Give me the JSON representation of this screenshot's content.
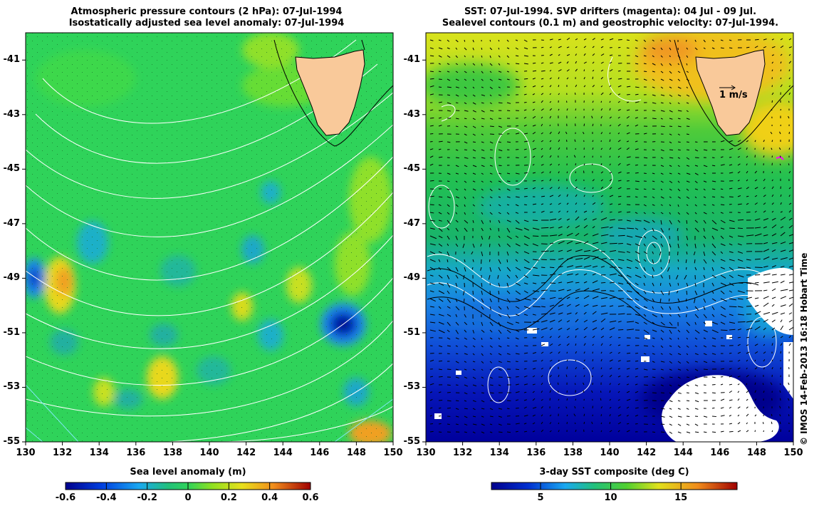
{
  "left_panel": {
    "title_line1": "Atmospheric pressure contours (2 hPa): 07-Jul-1994",
    "title_line2": "Isostatically adjusted sea level anomaly: 07-Jul-1994",
    "x_ticks": [
      "130",
      "132",
      "134",
      "136",
      "138",
      "140",
      "142",
      "144",
      "146",
      "148",
      "150"
    ],
    "y_ticks": [
      "-41",
      "-43",
      "-45",
      "-47",
      "-49",
      "-51",
      "-53",
      "-55"
    ],
    "colorbar_label": "Sea level anomaly (m)",
    "colorbar_ticks": [
      "-0.6",
      "-0.4",
      "-0.2",
      "0",
      "0.2",
      "0.4",
      "0.6"
    ]
  },
  "right_panel": {
    "title_line1": "SST: 07-Jul-1994. SVP drifters (magenta): 04 Jul - 09 Jul.",
    "title_line2": "Sealevel contours (0.1 m) and geostrophic velocity: 07-Jul-1994.",
    "x_ticks": [
      "130",
      "132",
      "134",
      "136",
      "138",
      "140",
      "142",
      "144",
      "146",
      "148",
      "150"
    ],
    "y_ticks": [
      "-41",
      "-43",
      "-45",
      "-47",
      "-49",
      "-51",
      "-53",
      "-55"
    ],
    "velocity_scale_label": "1 m/s",
    "colorbar_label": "3-day SST composite (deg C)",
    "colorbar_ticks": [
      "5",
      "10",
      "15"
    ]
  },
  "credit": "© IMOS 14-Feb-2013 16:18 Hobart Time",
  "colors": {
    "land": "#f9c99a",
    "anomaly_base": "#2fd35a",
    "sst_warm": "#e8e51c",
    "sst_cold": "#0000b4",
    "drifter": "#ff00ff"
  }
}
